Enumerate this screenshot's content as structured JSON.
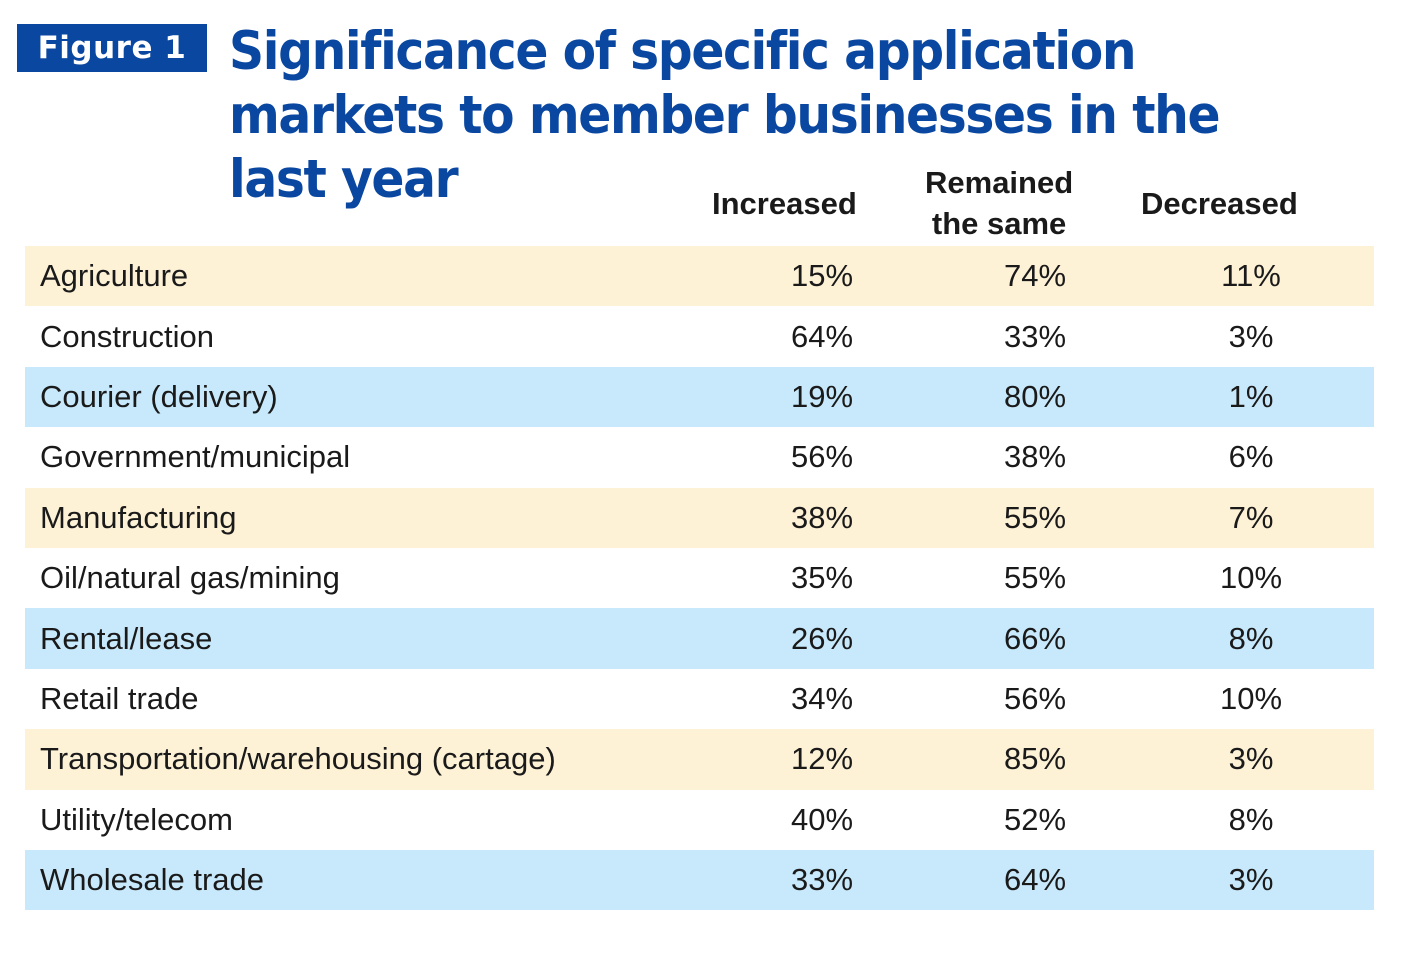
{
  "figure_label": "Figure 1",
  "colors": {
    "brand_blue": "#0a47a0",
    "row_yellow": "#fdf1d6",
    "row_blue": "#c8e9fb",
    "row_white": "#ffffff",
    "text": "#1a1a1a"
  },
  "chart_data": {
    "type": "table",
    "title": "Significance of specific application markets to member businesses in the last year",
    "columns": [
      {
        "label": "Increased",
        "lines": [
          "Increased"
        ]
      },
      {
        "label": "Remained the same",
        "lines": [
          "Remained",
          "the same"
        ]
      },
      {
        "label": "Decreased",
        "lines": [
          "Decreased"
        ]
      }
    ],
    "rows": [
      {
        "label": "Agriculture",
        "values": [
          "15%",
          "74%",
          "11%"
        ],
        "shade": "yellow"
      },
      {
        "label": "Construction",
        "values": [
          "64%",
          "33%",
          "3%"
        ],
        "shade": "white"
      },
      {
        "label": "Courier (delivery)",
        "values": [
          "19%",
          "80%",
          "1%"
        ],
        "shade": "blue"
      },
      {
        "label": "Government/municipal",
        "values": [
          "56%",
          "38%",
          "6%"
        ],
        "shade": "white"
      },
      {
        "label": "Manufacturing",
        "values": [
          "38%",
          "55%",
          "7%"
        ],
        "shade": "yellow"
      },
      {
        "label": "Oil/natural gas/mining",
        "values": [
          "35%",
          "55%",
          "10%"
        ],
        "shade": "white"
      },
      {
        "label": "Rental/lease",
        "values": [
          "26%",
          "66%",
          "8%"
        ],
        "shade": "blue"
      },
      {
        "label": "Retail trade",
        "values": [
          "34%",
          "56%",
          "10%"
        ],
        "shade": "white"
      },
      {
        "label": "Transportation/warehousing (cartage)",
        "values": [
          "12%",
          "85%",
          "3%"
        ],
        "shade": "yellow"
      },
      {
        "label": "Utility/telecom",
        "values": [
          "40%",
          "52%",
          "8%"
        ],
        "shade": "white"
      },
      {
        "label": "Wholesale trade",
        "values": [
          "33%",
          "64%",
          "3%"
        ],
        "shade": "blue"
      }
    ]
  }
}
